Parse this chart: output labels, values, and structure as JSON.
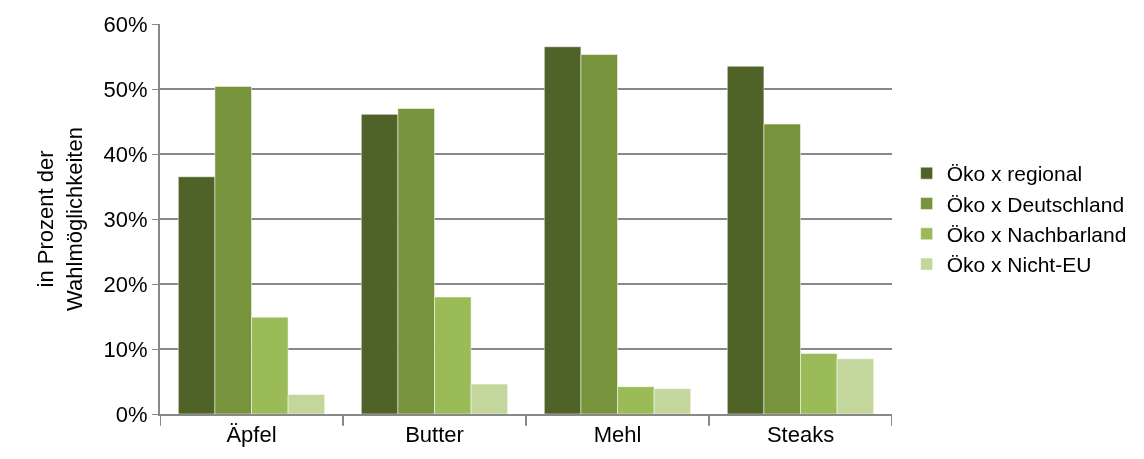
{
  "chart_data": {
    "type": "bar",
    "ylabel": "in Prozent der\nWahlmöglichkeiten",
    "categories": [
      "Äpfel",
      "Butter",
      "Mehl",
      "Steaks"
    ],
    "series": [
      {
        "name": "Öko x regional",
        "color": "#4f6228",
        "values": [
          36.5,
          46.1,
          56.5,
          53.5
        ]
      },
      {
        "name": "Öko x Deutschland",
        "color": "#77933c",
        "values": [
          50.4,
          47.0,
          55.3,
          44.6
        ]
      },
      {
        "name": "Öko x Nachbarland",
        "color": "#9bbb59",
        "values": [
          14.9,
          18.0,
          4.2,
          9.3
        ]
      },
      {
        "name": "Öko x Nicht-EU",
        "color": "#c3d69b",
        "values": [
          3.0,
          4.6,
          3.9,
          8.5
        ]
      }
    ],
    "ylim": [
      0,
      60
    ],
    "yticks": [
      {
        "value": 0,
        "label": "0%"
      },
      {
        "value": 10,
        "label": "10%"
      },
      {
        "value": 20,
        "label": "20%"
      },
      {
        "value": 30,
        "label": "30%"
      },
      {
        "value": 40,
        "label": "40%"
      },
      {
        "value": 50,
        "label": "50%"
      },
      {
        "value": 60,
        "label": "60%"
      }
    ],
    "grid": "y",
    "legend": "right"
  }
}
